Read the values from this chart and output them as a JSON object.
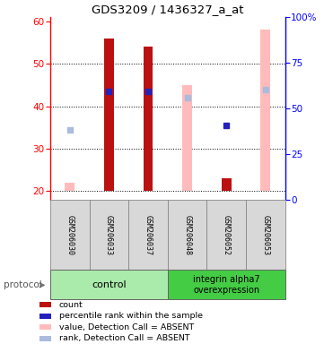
{
  "title": "GDS3209 / 1436327_a_at",
  "samples": [
    "GSM206030",
    "GSM206033",
    "GSM206037",
    "GSM206048",
    "GSM206052",
    "GSM206053"
  ],
  "group_control": {
    "name": "control",
    "indices": [
      0,
      1,
      2
    ],
    "color": "#aaeaaa"
  },
  "group_integrin": {
    "name": "integrin alpha7\noverexpression",
    "indices": [
      3,
      4,
      5
    ],
    "color": "#44cc44"
  },
  "bar_values": [
    22,
    56,
    54,
    45,
    23,
    58
  ],
  "bar_absent": [
    true,
    false,
    false,
    true,
    false,
    true
  ],
  "bar_color_present": "#bb1111",
  "bar_color_absent": "#ffbbbb",
  "rank_values": [
    34.5,
    43.5,
    43.5,
    42,
    35.5,
    44
  ],
  "rank_absent": [
    true,
    false,
    false,
    true,
    false,
    true
  ],
  "rank_color_present": "#2222bb",
  "rank_color_absent": "#aabbdd",
  "ylim_left": [
    18,
    61
  ],
  "ylim_right": [
    0,
    100
  ],
  "yticks_left": [
    20,
    30,
    40,
    50,
    60
  ],
  "ytick_labels_right": [
    "0",
    "25",
    "50",
    "75",
    "100%"
  ],
  "yticks_right_vals": [
    0,
    25,
    50,
    75,
    100
  ],
  "bar_width": 0.25,
  "bar_value_base": 20,
  "legend_items": [
    {
      "color": "#bb1111",
      "label": "count"
    },
    {
      "color": "#2222bb",
      "label": "percentile rank within the sample"
    },
    {
      "color": "#ffbbbb",
      "label": "value, Detection Call = ABSENT"
    },
    {
      "color": "#aabbdd",
      "label": "rank, Detection Call = ABSENT"
    }
  ]
}
